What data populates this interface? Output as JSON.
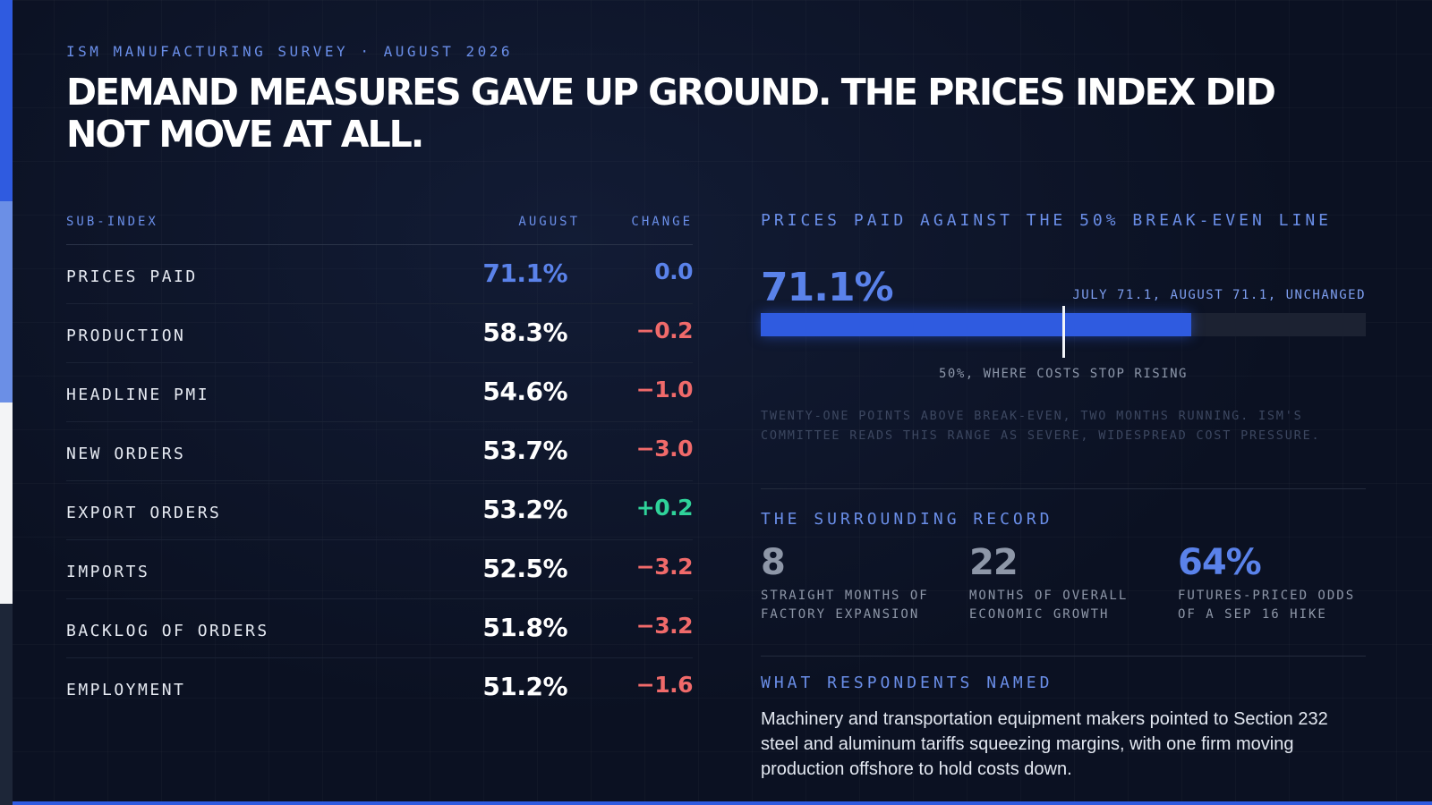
{
  "eyebrow": "ISM MANUFACTURING SURVEY · AUGUST 2026",
  "headline": "Demand measures gave up ground. The prices index did not move at all.",
  "colors": {
    "accent": "#2f5be0",
    "accent_light": "#5a82ea",
    "negative": "#f06a6a",
    "positive": "#2fd39a",
    "neutral": "#5a82ea"
  },
  "table": {
    "headers": {
      "sub_index": "SUB-INDEX",
      "august": "AUGUST",
      "change": "CHANGE"
    },
    "rows": [
      {
        "name": "PRICES PAID",
        "august": "71.1%",
        "change": "0.0",
        "trend": "flat"
      },
      {
        "name": "PRODUCTION",
        "august": "58.3%",
        "change": "−0.2",
        "trend": "down"
      },
      {
        "name": "HEADLINE PMI",
        "august": "54.6%",
        "change": "−1.0",
        "trend": "down"
      },
      {
        "name": "NEW ORDERS",
        "august": "53.7%",
        "change": "−3.0",
        "trend": "down"
      },
      {
        "name": "EXPORT ORDERS",
        "august": "53.2%",
        "change": "+0.2",
        "trend": "up"
      },
      {
        "name": "IMPORTS",
        "august": "52.5%",
        "change": "−3.2",
        "trend": "down"
      },
      {
        "name": "BACKLOG OF ORDERS",
        "august": "51.8%",
        "change": "−3.2",
        "trend": "down"
      },
      {
        "name": "EMPLOYMENT",
        "august": "51.2%",
        "change": "−1.6",
        "trend": "down"
      }
    ]
  },
  "prices_panel": {
    "title": "PRICES PAID AGAINST THE 50% BREAK-EVEN LINE",
    "big_value": "71.1%",
    "bar_note": "JULY 71.1, AUGUST 71.1, UNCHANGED",
    "value_pct": 71.1,
    "breakeven_pct": 50,
    "marker_label": "50%, WHERE COSTS STOP RISING",
    "description": "Twenty-one points above break-even, two months running. ISM's committee reads this range as severe, widespread cost pressure."
  },
  "record": {
    "title": "THE SURROUNDING RECORD",
    "stats": [
      {
        "value": "8",
        "label": "STRAIGHT MONTHS OF FACTORY EXPANSION"
      },
      {
        "value": "22",
        "label": "MONTHS OF OVERALL ECONOMIC GROWTH"
      },
      {
        "value": "64%",
        "label": "FUTURES-PRICED ODDS OF A SEP 16 HIKE"
      }
    ]
  },
  "respondents": {
    "title": "WHAT RESPONDENTS NAMED",
    "text": "Machinery and transportation equipment makers pointed to Section 232 steel and aluminum tariffs squeezing margins, with one firm moving production offshore to hold costs down."
  }
}
